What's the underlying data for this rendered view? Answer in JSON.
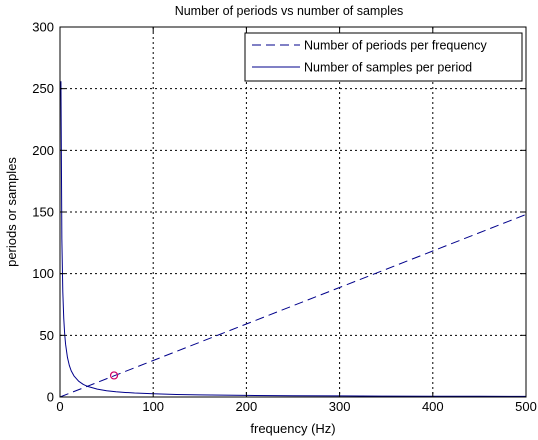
{
  "chart_data": {
    "type": "line",
    "title": "Number of periods vs number of samples",
    "xlabel": "frequency (Hz)",
    "ylabel": "periods or samples",
    "xlim": [
      0,
      500
    ],
    "ylim": [
      0,
      300
    ],
    "xticks": [
      0,
      100,
      200,
      300,
      400,
      500
    ],
    "yticks": [
      0,
      50,
      100,
      150,
      200,
      250,
      300
    ],
    "grid": true,
    "legend_position": "top-right",
    "series": [
      {
        "name": "Number of periods per frequency",
        "style": "dashed",
        "color": "#00008b",
        "x": [
          0,
          500
        ],
        "y": [
          0,
          148
        ]
      },
      {
        "name": "Number of samples per period",
        "style": "solid",
        "color": "#00008b",
        "x": [
          1,
          2,
          3,
          4,
          5,
          6,
          8,
          10,
          12,
          15,
          20,
          25,
          30,
          40,
          50,
          60,
          70,
          80,
          100,
          125,
          150,
          200,
          250,
          300,
          350,
          400,
          450,
          500
        ],
        "y": [
          256,
          128,
          85.3,
          64,
          51.2,
          42.7,
          32,
          25.6,
          21.3,
          17.1,
          12.8,
          10.2,
          8.5,
          6.4,
          5.1,
          4.3,
          3.7,
          3.2,
          2.6,
          2.0,
          1.7,
          1.3,
          1.0,
          0.9,
          0.7,
          0.6,
          0.6,
          0.5
        ]
      }
    ],
    "marker": {
      "shape": "circle",
      "color": "#cc0066",
      "x": 58,
      "y": 17.5
    }
  }
}
